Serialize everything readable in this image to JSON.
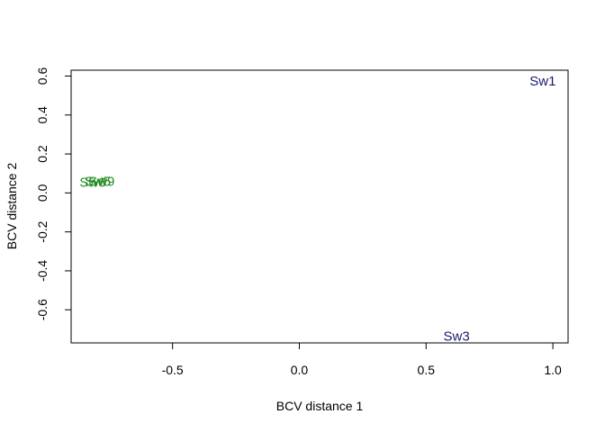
{
  "chart_data": {
    "type": "scatter",
    "title": "",
    "xlabel": "BCV distance 1",
    "ylabel": "BCV distance 2",
    "xlim": [
      -0.9,
      1.06
    ],
    "ylim": [
      -0.77,
      0.63
    ],
    "xticks": [
      -0.5,
      0.0,
      0.5,
      1.0
    ],
    "xtick_labels": [
      "-0.5",
      "0.0",
      "0.5",
      "1.0"
    ],
    "yticks": [
      -0.6,
      -0.4,
      -0.2,
      0.0,
      0.2,
      0.4,
      0.6
    ],
    "ytick_labels": [
      "-0.6",
      "-0.4",
      "-0.2",
      "0.0",
      "0.2",
      "0.4",
      "0.6"
    ],
    "grid": false,
    "legend": "none",
    "points": [
      {
        "label": "Sw1",
        "x": 0.96,
        "y": 0.575,
        "color": "#191970"
      },
      {
        "label": "Sw3",
        "x": 0.62,
        "y": -0.735,
        "color": "#191970"
      },
      {
        "label": "Sw5",
        "x": -0.795,
        "y": 0.06,
        "color": "#228B22"
      },
      {
        "label": "Sw9",
        "x": -0.78,
        "y": 0.06,
        "color": "#228B22"
      },
      {
        "label": "Sw6",
        "x": -0.815,
        "y": 0.055,
        "color": "#228B22"
      }
    ]
  }
}
